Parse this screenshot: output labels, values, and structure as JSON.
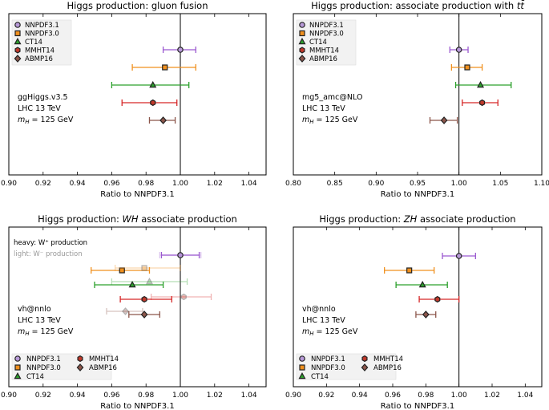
{
  "chart_data": [
    {
      "type": "errorbar",
      "title": "Higgs production: gluon fusion",
      "xlabel": "Ratio to NNPDF3.1",
      "xlim": [
        0.9,
        1.05
      ],
      "xticks": [
        "0.90",
        "0.92",
        "0.94",
        "0.96",
        "0.98",
        "1.00",
        "1.02",
        "1.04"
      ],
      "xtick_values": [
        0.9,
        0.92,
        0.94,
        0.96,
        0.98,
        1.0,
        1.02,
        1.04
      ],
      "refline": 1.0,
      "info": [
        "ggHiggs.v3.5",
        "LHC 13 TeV",
        "m_H = 125 GeV"
      ],
      "legend": [
        "NNPDF3.1",
        "NNPDF3.0",
        "CT14",
        "MMHT14",
        "ABMP16"
      ],
      "legend_layout": "column",
      "series": [
        {
          "name": "NNPDF3.1",
          "value": 1.0,
          "err_low": 0.99,
          "err_high": 1.009
        },
        {
          "name": "NNPDF3.0",
          "value": 0.991,
          "err_low": 0.972,
          "err_high": 1.009
        },
        {
          "name": "CT14",
          "value": 0.984,
          "err_low": 0.96,
          "err_high": 1.005
        },
        {
          "name": "MMHT14",
          "value": 0.984,
          "err_low": 0.966,
          "err_high": 0.998
        },
        {
          "name": "ABMP16",
          "value": 0.99,
          "err_low": 0.982,
          "err_high": 0.997
        }
      ]
    },
    {
      "type": "errorbar",
      "title": "Higgs production: associate production with t t̄",
      "title_parts": [
        "Higgs production: associate production with ",
        "t",
        "t̄"
      ],
      "xlabel": "Ratio to NNPDF3.1",
      "xlim": [
        0.8,
        1.1
      ],
      "xticks": [
        "0.80",
        "0.85",
        "0.90",
        "0.95",
        "1.00",
        "1.05",
        "1.10"
      ],
      "xtick_values": [
        0.8,
        0.85,
        0.9,
        0.95,
        1.0,
        1.05,
        1.1
      ],
      "refline": 1.0,
      "info": [
        "mg5_amc@NLO",
        "LHC 13 TeV",
        "m_H = 125 GeV"
      ],
      "legend": [
        "NNPDF3.1",
        "NNPDF3.0",
        "CT14",
        "MMHT14",
        "ABMP16"
      ],
      "legend_layout": "column",
      "series": [
        {
          "name": "NNPDF3.1",
          "value": 1.0,
          "err_low": 0.989,
          "err_high": 1.011
        },
        {
          "name": "NNPDF3.0",
          "value": 1.01,
          "err_low": 0.991,
          "err_high": 1.028
        },
        {
          "name": "CT14",
          "value": 1.026,
          "err_low": 0.996,
          "err_high": 1.063
        },
        {
          "name": "MMHT14",
          "value": 1.028,
          "err_low": 1.004,
          "err_high": 1.047
        },
        {
          "name": "ABMP16",
          "value": 0.982,
          "err_low": 0.965,
          "err_high": 0.998
        }
      ]
    },
    {
      "type": "errorbar",
      "title": "Higgs production: WH associate production",
      "title_parts": [
        "Higgs production: ",
        "WH",
        " associate production"
      ],
      "xlabel": "Ratio to NNPDF3.1",
      "xlim": [
        0.9,
        1.05
      ],
      "xticks": [
        "0.90",
        "0.92",
        "0.94",
        "0.96",
        "0.98",
        "1.00",
        "1.02",
        "1.04"
      ],
      "xtick_values": [
        0.9,
        0.92,
        0.94,
        0.96,
        0.98,
        1.0,
        1.02,
        1.04
      ],
      "refline": 1.0,
      "heavy_note": "heavy: W⁺ production",
      "light_note": "light: W⁻ production",
      "info": [
        "vh@nnlo",
        "LHC 13 TeV",
        "m_H = 125 GeV"
      ],
      "legend": [
        "NNPDF3.1",
        "NNPDF3.0",
        "CT14",
        "MMHT14",
        "ABMP16"
      ],
      "legend_layout": "two-column",
      "series": [
        {
          "name": "NNPDF3.1 W+",
          "value": 1.0,
          "err_low": 0.989,
          "err_high": 1.011
        },
        {
          "name": "NNPDF3.1 W-",
          "value": 1.0,
          "err_low": 0.988,
          "err_high": 1.012
        },
        {
          "name": "NNPDF3.0 W+",
          "value": 0.966,
          "err_low": 0.948,
          "err_high": 0.982
        },
        {
          "name": "NNPDF3.0 W-",
          "value": 0.979,
          "err_low": 0.962,
          "err_high": 1.0
        },
        {
          "name": "CT14 W+",
          "value": 0.972,
          "err_low": 0.95,
          "err_high": 0.99
        },
        {
          "name": "CT14 W-",
          "value": 0.982,
          "err_low": 0.96,
          "err_high": 1.004
        },
        {
          "name": "MMHT14 W+",
          "value": 0.979,
          "err_low": 0.965,
          "err_high": 0.995
        },
        {
          "name": "MMHT14 W-",
          "value": 1.002,
          "err_low": 0.983,
          "err_high": 1.018
        },
        {
          "name": "ABMP16 W+",
          "value": 0.979,
          "err_low": 0.97,
          "err_high": 0.988
        },
        {
          "name": "ABMP16 W-",
          "value": 0.968,
          "err_low": 0.957,
          "err_high": 0.978
        }
      ]
    },
    {
      "type": "errorbar",
      "title": "Higgs production: ZH associate production",
      "title_parts": [
        "Higgs production: ",
        "ZH",
        " associate production"
      ],
      "xlabel": "Ratio to NNPDF3.1",
      "xlim": [
        0.9,
        1.05
      ],
      "xticks": [
        "0.90",
        "0.92",
        "0.94",
        "0.96",
        "0.98",
        "1.00",
        "1.02",
        "1.04"
      ],
      "xtick_values": [
        0.9,
        0.92,
        0.94,
        0.96,
        0.98,
        1.0,
        1.02,
        1.04
      ],
      "refline": 1.0,
      "info": [
        "vh@nnlo",
        "LHC 13 TeV",
        "m_H = 125 GeV"
      ],
      "legend": [
        "NNPDF3.1",
        "NNPDF3.0",
        "CT14",
        "MMHT14",
        "ABMP16"
      ],
      "legend_layout": "two-column",
      "series": [
        {
          "name": "NNPDF3.1",
          "value": 1.0,
          "err_low": 0.99,
          "err_high": 1.01
        },
        {
          "name": "NNPDF3.0",
          "value": 0.97,
          "err_low": 0.955,
          "err_high": 0.985
        },
        {
          "name": "CT14",
          "value": 0.978,
          "err_low": 0.962,
          "err_high": 0.993
        },
        {
          "name": "MMHT14",
          "value": 0.987,
          "err_low": 0.976,
          "err_high": 1.0
        },
        {
          "name": "ABMP16",
          "value": 0.98,
          "err_low": 0.974,
          "err_high": 0.986
        }
      ]
    }
  ],
  "styles": {
    "NNPDF3.1": {
      "color": "#9b59d0",
      "marker": "circle",
      "fill": "#b89ad8"
    },
    "NNPDF3.0": {
      "color": "#f0901e",
      "marker": "square",
      "fill": "#f0901e"
    },
    "CT14": {
      "color": "#2ca02c",
      "marker": "triangle",
      "fill": "#2ca02c"
    },
    "MMHT14": {
      "color": "#d62728",
      "marker": "hexagon",
      "fill": "#c0392b"
    },
    "ABMP16": {
      "color": "#8c564b",
      "marker": "diamond",
      "fill": "#8c564b"
    }
  }
}
